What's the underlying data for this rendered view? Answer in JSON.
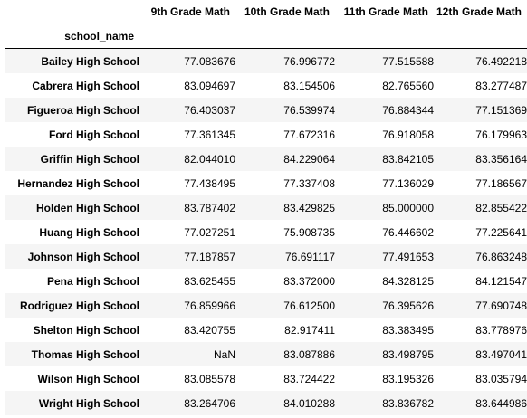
{
  "table": {
    "columns": [
      "9th Grade Math",
      "10th Grade Math",
      "11th Grade Math",
      "12th Grade Math"
    ],
    "index_name": "school_name",
    "rows": [
      {
        "school": "Bailey High School",
        "values": [
          "77.083676",
          "76.996772",
          "77.515588",
          "76.492218"
        ]
      },
      {
        "school": "Cabrera High School",
        "values": [
          "83.094697",
          "83.154506",
          "82.765560",
          "83.277487"
        ]
      },
      {
        "school": "Figueroa High School",
        "values": [
          "76.403037",
          "76.539974",
          "76.884344",
          "77.151369"
        ]
      },
      {
        "school": "Ford High School",
        "values": [
          "77.361345",
          "77.672316",
          "76.918058",
          "76.179963"
        ]
      },
      {
        "school": "Griffin High School",
        "values": [
          "82.044010",
          "84.229064",
          "83.842105",
          "83.356164"
        ]
      },
      {
        "school": "Hernandez High School",
        "values": [
          "77.438495",
          "77.337408",
          "77.136029",
          "77.186567"
        ]
      },
      {
        "school": "Holden High School",
        "values": [
          "83.787402",
          "83.429825",
          "85.000000",
          "82.855422"
        ]
      },
      {
        "school": "Huang High School",
        "values": [
          "77.027251",
          "75.908735",
          "76.446602",
          "77.225641"
        ]
      },
      {
        "school": "Johnson High School",
        "values": [
          "77.187857",
          "76.691117",
          "77.491653",
          "76.863248"
        ]
      },
      {
        "school": "Pena High School",
        "values": [
          "83.625455",
          "83.372000",
          "84.328125",
          "84.121547"
        ]
      },
      {
        "school": "Rodriguez High School",
        "values": [
          "76.859966",
          "76.612500",
          "76.395626",
          "77.690748"
        ]
      },
      {
        "school": "Shelton High School",
        "values": [
          "83.420755",
          "82.917411",
          "83.383495",
          "83.778976"
        ]
      },
      {
        "school": "Thomas High School",
        "values": [
          "NaN",
          "83.087886",
          "83.498795",
          "83.497041"
        ]
      },
      {
        "school": "Wilson High School",
        "values": [
          "83.085578",
          "83.724422",
          "83.195326",
          "83.035794"
        ]
      },
      {
        "school": "Wright High School",
        "values": [
          "83.264706",
          "84.010288",
          "83.836782",
          "83.644986"
        ]
      }
    ]
  }
}
